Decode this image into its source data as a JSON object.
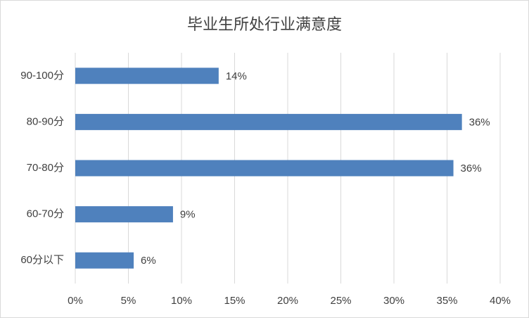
{
  "chart_data": {
    "type": "bar",
    "orientation": "horizontal",
    "title": "毕业生所处行业满意度",
    "categories": [
      "90-100分",
      "80-90分",
      "70-80分",
      "60-70分",
      "60分以下"
    ],
    "values": [
      13.5,
      36.4,
      35.6,
      9.2,
      5.5
    ],
    "value_labels": [
      "14%",
      "36%",
      "36%",
      "9%",
      "6%"
    ],
    "color": "#4f81bd",
    "xlim": [
      0,
      40
    ],
    "xticks": [
      {
        "value": 0,
        "label": "0%"
      },
      {
        "value": 5,
        "label": "5%"
      },
      {
        "value": 10,
        "label": "10%"
      },
      {
        "value": 15,
        "label": "15%"
      },
      {
        "value": 20,
        "label": "20%"
      },
      {
        "value": 25,
        "label": "25%"
      },
      {
        "value": 30,
        "label": "30%"
      },
      {
        "value": 35,
        "label": "35%"
      },
      {
        "value": 40,
        "label": "40%"
      }
    ],
    "grid": true
  }
}
